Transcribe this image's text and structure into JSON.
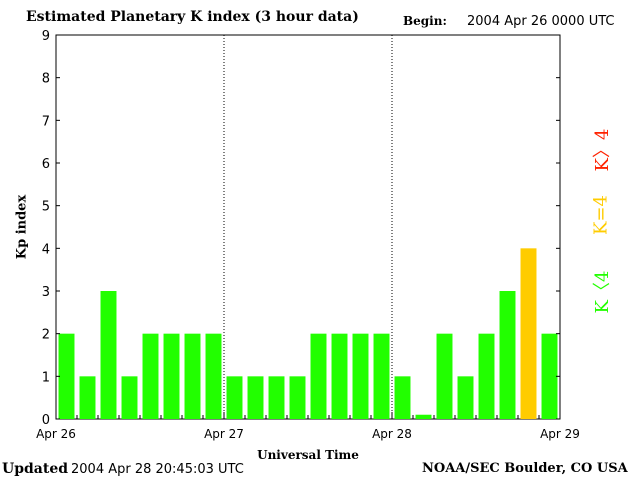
{
  "header": {
    "title": "Estimated Planetary K index (3 hour data)",
    "begin_label": "Begin:",
    "begin_value": "2004 Apr 26 0000 UTC"
  },
  "footer": {
    "updated_label": "Updated",
    "updated_value": "2004 Apr 28 20:45:03 UTC",
    "credit": "NOAA/SEC Boulder, CO USA"
  },
  "legend": {
    "high": "K〉4",
    "mid": "K=4",
    "low": "K〈4"
  },
  "colors": {
    "low": "#22ff00",
    "mid": "#ffcc00",
    "high": "#ff2200"
  },
  "chart_data": {
    "type": "bar",
    "xlabel": "Universal Time",
    "ylabel": "Kp index",
    "ylim": [
      0,
      9
    ],
    "yticks": [
      "0",
      "1",
      "2",
      "3",
      "4",
      "5",
      "6",
      "7",
      "8",
      "9"
    ],
    "day_labels": [
      "Apr 26",
      "Apr 27",
      "Apr 28",
      "Apr 29"
    ],
    "values": [
      2,
      1,
      3,
      1,
      2,
      2,
      2,
      2,
      1,
      1,
      1,
      1,
      2,
      2,
      2,
      2,
      1,
      0.1,
      2,
      1,
      2,
      3,
      4,
      2
    ],
    "grid": "day separators only",
    "legend_position": "right"
  }
}
